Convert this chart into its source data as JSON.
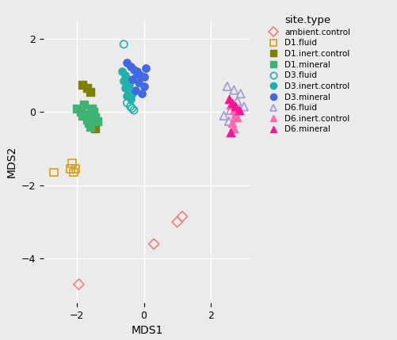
{
  "xlabel": "MDS1",
  "ylabel": "MDS2",
  "xlim": [
    -3.0,
    3.2
  ],
  "ylim": [
    -5.2,
    2.5
  ],
  "xticks": [
    -2,
    0,
    2
  ],
  "yticks": [
    -4,
    -2,
    0,
    2
  ],
  "bg_color": "#EBEBEB",
  "fig_bg_color": "#EBEBEB",
  "grid_color": "white",
  "legend_title": "site.type",
  "groups": [
    {
      "label": "ambient.control",
      "marker": "D",
      "facecolor": "none",
      "edgecolor": "#F08080",
      "size": 45,
      "lw": 1.2,
      "points": [
        [
          -1.95,
          -4.7
        ],
        [
          1.0,
          -3.0
        ],
        [
          1.15,
          -2.85
        ],
        [
          0.3,
          -3.6
        ]
      ]
    },
    {
      "label": "D1.fluid",
      "marker": "s",
      "facecolor": "none",
      "edgecolor": "#D4A017",
      "size": 45,
      "lw": 1.2,
      "points": [
        [
          -2.7,
          -1.65
        ],
        [
          -2.2,
          -1.55
        ],
        [
          -2.15,
          -1.4
        ],
        [
          -2.1,
          -1.65
        ],
        [
          -2.05,
          -1.55
        ]
      ]
    },
    {
      "label": "D1.inert.control",
      "marker": "s",
      "facecolor": "#808000",
      "edgecolor": "#808000",
      "size": 45,
      "lw": 1.0,
      "points": [
        [
          -1.85,
          0.75
        ],
        [
          -1.7,
          0.65
        ],
        [
          -1.6,
          0.55
        ],
        [
          -1.55,
          -0.35
        ],
        [
          -1.45,
          -0.45
        ]
      ]
    },
    {
      "label": "D1.mineral",
      "marker": "s",
      "facecolor": "#3CB371",
      "edgecolor": "#3CB371",
      "size": 45,
      "lw": 1.0,
      "points": [
        [
          -2.0,
          0.1
        ],
        [
          -1.9,
          0.0
        ],
        [
          -1.85,
          -0.1
        ],
        [
          -1.75,
          -0.05
        ],
        [
          -1.7,
          -0.2
        ],
        [
          -1.8,
          0.2
        ],
        [
          -1.65,
          -0.3
        ],
        [
          -1.6,
          -0.4
        ],
        [
          -1.55,
          0.1
        ],
        [
          -1.5,
          0.0
        ],
        [
          -1.45,
          -0.15
        ],
        [
          -1.4,
          -0.25
        ]
      ]
    },
    {
      "label": "D3.fluid",
      "marker": "o",
      "facecolor": "none",
      "edgecolor": "#20B2AA",
      "size": 45,
      "lw": 1.2,
      "points": [
        [
          -0.6,
          1.85
        ],
        [
          -0.5,
          0.25
        ],
        [
          -0.4,
          0.15
        ],
        [
          -0.35,
          0.1
        ],
        [
          -0.3,
          0.05
        ]
      ]
    },
    {
      "label": "D3.inert.control",
      "marker": "o",
      "facecolor": "#20B2AA",
      "edgecolor": "#20B2AA",
      "size": 45,
      "lw": 1.0,
      "points": [
        [
          -0.65,
          1.1
        ],
        [
          -0.55,
          1.0
        ],
        [
          -0.5,
          0.9
        ],
        [
          -0.6,
          0.85
        ],
        [
          -0.45,
          0.75
        ],
        [
          -0.55,
          0.65
        ],
        [
          -0.45,
          0.55
        ],
        [
          -0.35,
          0.5
        ],
        [
          -0.5,
          0.45
        ],
        [
          -0.4,
          0.35
        ]
      ]
    },
    {
      "label": "D3.mineral",
      "marker": "o",
      "facecolor": "#4169E1",
      "edgecolor": "#4169E1",
      "size": 45,
      "lw": 1.0,
      "points": [
        [
          -0.5,
          1.35
        ],
        [
          -0.4,
          1.25
        ],
        [
          -0.3,
          1.15
        ],
        [
          -0.2,
          1.1
        ],
        [
          -0.1,
          1.0
        ],
        [
          -0.35,
          0.9
        ],
        [
          -0.15,
          0.8
        ],
        [
          0.0,
          0.7
        ],
        [
          -0.25,
          0.6
        ],
        [
          -0.05,
          0.5
        ],
        [
          0.05,
          1.2
        ],
        [
          -0.2,
          1.05
        ],
        [
          0.0,
          0.95
        ]
      ]
    },
    {
      "label": "D6.fluid",
      "marker": "^",
      "facecolor": "none",
      "edgecolor": "#9B9BD6",
      "size": 55,
      "lw": 1.2,
      "points": [
        [
          2.5,
          0.7
        ],
        [
          2.7,
          0.6
        ],
        [
          2.9,
          0.5
        ],
        [
          3.0,
          0.15
        ],
        [
          2.55,
          -0.25
        ],
        [
          2.4,
          -0.1
        ],
        [
          2.6,
          0.05
        ],
        [
          2.8,
          0.3
        ]
      ]
    },
    {
      "label": "D6.inert.control",
      "marker": "^",
      "facecolor": "#FF69B4",
      "edgecolor": "#FF69B4",
      "size": 55,
      "lw": 1.0,
      "points": [
        [
          2.6,
          0.2
        ],
        [
          2.7,
          0.05
        ],
        [
          2.75,
          -0.05
        ],
        [
          2.8,
          -0.15
        ],
        [
          2.65,
          -0.3
        ],
        [
          2.7,
          -0.45
        ]
      ]
    },
    {
      "label": "D6.mineral",
      "marker": "^",
      "facecolor": "#FF1493",
      "edgecolor": "#FF1493",
      "size": 55,
      "lw": 1.0,
      "points": [
        [
          2.55,
          0.35
        ],
        [
          2.65,
          0.25
        ],
        [
          2.75,
          0.15
        ],
        [
          2.85,
          0.05
        ],
        [
          2.6,
          -0.55
        ]
      ]
    }
  ]
}
